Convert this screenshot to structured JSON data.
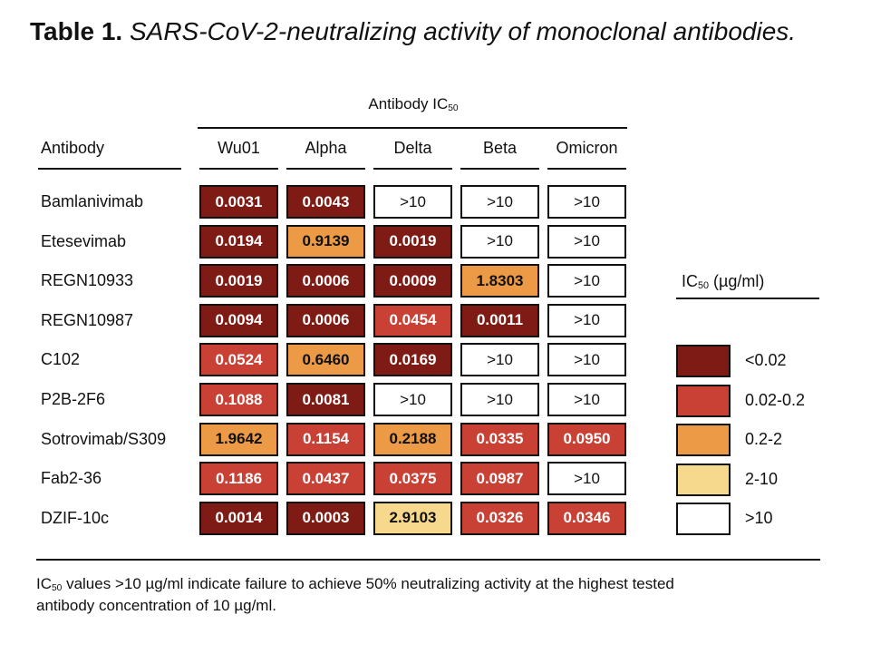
{
  "title": {
    "label": "Table 1.",
    "caption": "SARS-CoV-2-neutralizing activity of monoclonal antibodies."
  },
  "group_header": {
    "text": "Antibody IC",
    "sub": "50"
  },
  "antibody_header": "Antibody",
  "columns": [
    "Wu01",
    "Alpha",
    "Delta",
    "Beta",
    "Omicron"
  ],
  "rows": [
    {
      "name": "Bamlanivimab",
      "values": [
        "0.0031",
        "0.0043",
        ">10",
        ">10",
        ">10"
      ]
    },
    {
      "name": "Etesevimab",
      "values": [
        "0.0194",
        "0.9139",
        "0.0019",
        ">10",
        ">10"
      ]
    },
    {
      "name": "REGN10933",
      "values": [
        "0.0019",
        "0.0006",
        "0.0009",
        "1.8303",
        ">10"
      ]
    },
    {
      "name": "REGN10987",
      "values": [
        "0.0094",
        "0.0006",
        "0.0454",
        "0.0011",
        ">10"
      ]
    },
    {
      "name": "C102",
      "values": [
        "0.0524",
        "0.6460",
        "0.0169",
        ">10",
        ">10"
      ]
    },
    {
      "name": "P2B-2F6",
      "values": [
        "0.1088",
        "0.0081",
        ">10",
        ">10",
        ">10"
      ]
    },
    {
      "name": "Sotrovimab/S309",
      "values": [
        "1.9642",
        "0.1154",
        "0.2188",
        "0.0335",
        "0.0950"
      ]
    },
    {
      "name": "Fab2-36",
      "values": [
        "0.1186",
        "0.0437",
        "0.0375",
        "0.0987",
        ">10"
      ]
    },
    {
      "name": "DZIF-10c",
      "values": [
        "0.0014",
        "0.0003",
        "2.9103",
        "0.0326",
        "0.0346"
      ]
    }
  ],
  "legend": {
    "title_prefix": "IC",
    "title_sub": "50",
    "title_suffix": " (µg/ml)",
    "items": [
      {
        "label": "<0.02",
        "color": "#7e1b14"
      },
      {
        "label": "0.02-0.2",
        "color": "#c94035"
      },
      {
        "label": "0.2-2",
        "color": "#ec9a45"
      },
      {
        "label": "2-10",
        "color": "#f7d98e"
      },
      {
        "label": ">10",
        "color": "#ffffff"
      }
    ]
  },
  "footnote": {
    "prefix": "IC",
    "sub": "50",
    "line1_rest": " values >10 µg/ml indicate failure to achieve 50% neutralizing activity at the highest tested",
    "line2": "antibody concentration of 10 µg/ml."
  }
}
